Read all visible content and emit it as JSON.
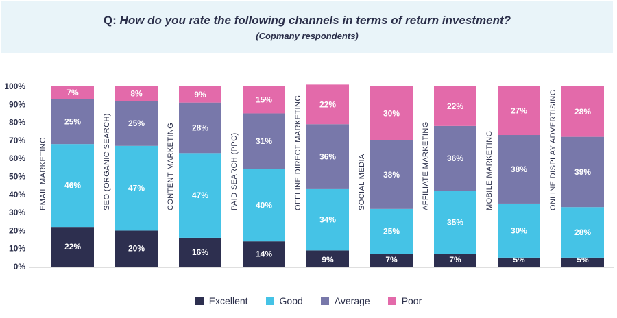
{
  "title": {
    "prefix": "Q:",
    "question": "How do you rate the following channels in terms of return investment?",
    "subtitle": "(Copmany respondents)"
  },
  "colors": {
    "Excellent": "#2d2f4f",
    "Good": "#45c3e6",
    "Average": "#7878aa",
    "Poor": "#e36aaa",
    "axis": "#bfbfbf",
    "text_dark": "#2b2f4a"
  },
  "chart_data": {
    "type": "bar",
    "stacked": true,
    "categories": [
      "EMAIL MARKETING",
      "SEO (ORGANIC SEARCH)",
      "CONTENT MARKETING",
      "PAID SEARCH (PPC)",
      "OFFLINE DIRECT MARKETING",
      "SOCIAL MEDIA",
      "AFFILIATE MARKETING",
      "MOBILE MARKETING",
      "ONLINE DISPLAY ADVERTISING"
    ],
    "series": [
      {
        "name": "Excellent",
        "values": [
          22,
          20,
          16,
          14,
          9,
          7,
          7,
          5,
          5
        ]
      },
      {
        "name": "Good",
        "values": [
          46,
          47,
          47,
          40,
          34,
          25,
          35,
          30,
          28
        ]
      },
      {
        "name": "Average",
        "values": [
          25,
          25,
          28,
          31,
          36,
          38,
          36,
          38,
          39
        ]
      },
      {
        "name": "Poor",
        "values": [
          7,
          8,
          9,
          15,
          22,
          30,
          22,
          27,
          28
        ]
      }
    ],
    "yticks": [
      "0%",
      "10%",
      "20%",
      "30%",
      "40%",
      "50%",
      "60%",
      "70%",
      "80%",
      "90%",
      "100%"
    ],
    "ylim": [
      0,
      100
    ],
    "legend_position": "bottom"
  }
}
